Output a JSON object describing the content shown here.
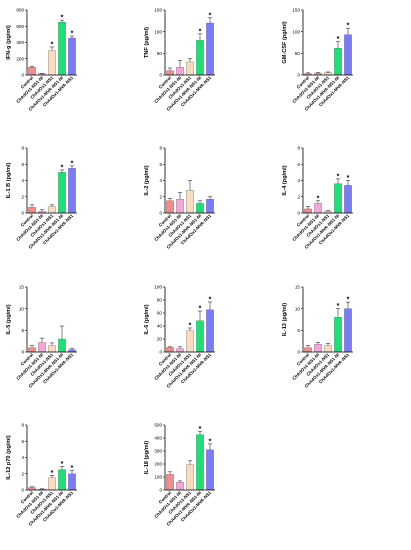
{
  "chart_data": [
    {
      "type": "bar",
      "title": "",
      "xlabel": "",
      "ylabel": "IFN-g (pg/ml)",
      "ylim": [
        0,
        800
      ],
      "yticks": [
        0,
        200,
        400,
        600,
        800
      ],
      "categories": [
        "Control",
        "ChAdOx1-NS1-NI",
        "ChAdOx1-NS1",
        "ChAdOx1-MVA-NS1-NI",
        "ChAdOx1-MVA-NS1"
      ],
      "values": [
        95,
        15,
        300,
        650,
        455
      ],
      "errors": [
        10,
        5,
        45,
        25,
        25
      ],
      "significant": [
        false,
        false,
        true,
        true,
        true
      ],
      "colors": [
        "#f08c8c",
        "#f4a6d7",
        "#f7dcc1",
        "#22dd77",
        "#7b7bf2"
      ]
    },
    {
      "type": "bar",
      "title": "",
      "xlabel": "",
      "ylabel": "TNF (pg/ml)",
      "ylim": [
        0,
        150
      ],
      "yticks": [
        0,
        50,
        100,
        150
      ],
      "categories": [
        "Control",
        "ChAdOx1-NS1-NI",
        "ChAdOx1-NS1",
        "ChAdOx1-MVA-NS1-NI",
        "ChAdOx1-MVA-NS1"
      ],
      "values": [
        10,
        18,
        30,
        80,
        120
      ],
      "errors": [
        6,
        16,
        8,
        15,
        12
      ],
      "significant": [
        false,
        false,
        false,
        true,
        true
      ],
      "colors": [
        "#f08c8c",
        "#f4a6d7",
        "#f7dcc1",
        "#22dd77",
        "#7b7bf2"
      ]
    },
    {
      "type": "bar",
      "title": "",
      "xlabel": "",
      "ylabel": "GM-CSF (pg/ml)",
      "ylim": [
        0,
        150
      ],
      "yticks": [
        0,
        50,
        100,
        150
      ],
      "categories": [
        "Control",
        "ChAdOx1-NS1-NI",
        "ChAdOx1-NS1",
        "ChAdOx1-MVA-NS1-NI",
        "ChAdOx1-MVA-NS1"
      ],
      "values": [
        3,
        4,
        5,
        62,
        93
      ],
      "errors": [
        2,
        2,
        2,
        15,
        15
      ],
      "significant": [
        false,
        false,
        false,
        true,
        true
      ],
      "colors": [
        "#f08c8c",
        "#f4a6d7",
        "#f7dcc1",
        "#22dd77",
        "#7b7bf2"
      ]
    },
    {
      "type": "bar",
      "title": "",
      "xlabel": "",
      "ylabel": "IL-1 B (pg/ml)",
      "ylim": [
        0,
        8
      ],
      "yticks": [
        0,
        2,
        4,
        6,
        8
      ],
      "categories": [
        "Control",
        "ChAdOx1-NS1-NI",
        "ChAdOx1-NS1",
        "ChAdOx1-MVA-NS1-NI",
        "ChAdOx1-MVA-NS1"
      ],
      "values": [
        0.7,
        0.2,
        0.8,
        5.0,
        5.5
      ],
      "errors": [
        0.3,
        0.2,
        0.2,
        0.3,
        0.3
      ],
      "significant": [
        false,
        false,
        false,
        true,
        true
      ],
      "colors": [
        "#f08c8c",
        "#f4a6d7",
        "#f7dcc1",
        "#22dd77",
        "#7b7bf2"
      ]
    },
    {
      "type": "bar",
      "title": "",
      "xlabel": "",
      "ylabel": "IL-2 (pg/ml)",
      "ylim": [
        0,
        8
      ],
      "yticks": [
        0,
        2,
        4,
        6,
        8
      ],
      "categories": [
        "Control",
        "ChAdOx1-NS1-NI",
        "ChAdOx1-NS1",
        "ChAdOx1-MVA-NS1-NI",
        "ChAdOx1-MVA-NS1"
      ],
      "values": [
        1.5,
        1.7,
        2.8,
        1.2,
        1.7
      ],
      "errors": [
        0.3,
        0.8,
        1.2,
        0.3,
        0.3
      ],
      "significant": [
        false,
        false,
        false,
        false,
        false
      ],
      "colors": [
        "#f08c8c",
        "#f4a6d7",
        "#f7dcc1",
        "#22dd77",
        "#7b7bf2"
      ]
    },
    {
      "type": "bar",
      "title": "",
      "xlabel": "",
      "ylabel": "IL-4 (pg/ml)",
      "ylim": [
        0,
        8
      ],
      "yticks": [
        0,
        2,
        4,
        6,
        8
      ],
      "categories": [
        "Control",
        "ChAdOx1-NS1-NI",
        "ChAdOx1-NS1",
        "ChAdOx1-MVA-NS1-NI",
        "ChAdOx1-MVA-NS1"
      ],
      "values": [
        0.5,
        1.2,
        0.2,
        3.6,
        3.4
      ],
      "errors": [
        0.3,
        0.3,
        0.1,
        0.6,
        0.6
      ],
      "significant": [
        false,
        true,
        false,
        true,
        true
      ],
      "colors": [
        "#f08c8c",
        "#f4a6d7",
        "#f7dcc1",
        "#22dd77",
        "#7b7bf2"
      ]
    },
    {
      "type": "bar",
      "title": "",
      "xlabel": "",
      "ylabel": "IL-5 (pg/ml)",
      "ylim": [
        0,
        15
      ],
      "yticks": [
        0,
        5,
        10,
        15
      ],
      "categories": [
        "Control",
        "ChAdOx1-NS1-NI",
        "ChAdOx1-NS1",
        "ChAdOx1-MVA-NS1-NI",
        "ChAdOx1-MVA-NS1"
      ],
      "values": [
        1.0,
        2.2,
        1.5,
        3.0,
        0.5
      ],
      "errors": [
        0.5,
        1.0,
        0.6,
        3.0,
        0.3
      ],
      "significant": [
        false,
        false,
        false,
        false,
        false
      ],
      "colors": [
        "#f08c8c",
        "#f4a6d7",
        "#f7dcc1",
        "#22dd77",
        "#7b7bf2"
      ]
    },
    {
      "type": "bar",
      "title": "",
      "xlabel": "",
      "ylabel": "IL-6 (pg/ml)",
      "ylim": [
        0,
        100
      ],
      "yticks": [
        0,
        20,
        40,
        60,
        80,
        100
      ],
      "categories": [
        "Control",
        "ChAdOx1-NS1-NI",
        "ChAdOx1-NS1",
        "ChAdOx1-MVA-NS1-NI",
        "ChAdOx1-MVA-NS1"
      ],
      "values": [
        7,
        5,
        33,
        48,
        65
      ],
      "errors": [
        1,
        3,
        4,
        15,
        12
      ],
      "significant": [
        false,
        false,
        true,
        true,
        true
      ],
      "colors": [
        "#f08c8c",
        "#f4a6d7",
        "#f7dcc1",
        "#22dd77",
        "#7b7bf2"
      ]
    },
    {
      "type": "bar",
      "title": "",
      "xlabel": "",
      "ylabel": "IL-13 (pg/ml)",
      "ylim": [
        0,
        15
      ],
      "yticks": [
        0,
        5,
        10,
        15
      ],
      "categories": [
        "Control",
        "ChAdOx1-NS1-NI",
        "ChAdOx1-NS1",
        "ChAdOx1-MVA-NS1-NI",
        "ChAdOx1-MVA-NS1"
      ],
      "values": [
        1.0,
        1.8,
        1.5,
        8.0,
        10.0
      ],
      "errors": [
        0.5,
        0.4,
        0.5,
        2.0,
        1.5
      ],
      "significant": [
        false,
        false,
        false,
        true,
        true
      ],
      "colors": [
        "#f08c8c",
        "#f4a6d7",
        "#f7dcc1",
        "#22dd77",
        "#7b7bf2"
      ]
    },
    {
      "type": "bar",
      "title": "",
      "xlabel": "",
      "ylabel": "IL-12 p70 (pg/ml)",
      "ylim": [
        0,
        8
      ],
      "yticks": [
        0,
        2,
        4,
        6,
        8
      ],
      "categories": [
        "Control",
        "ChAdOx1-NS1-NI",
        "ChAdOx1-NS1",
        "ChAdOx1-MVA-NS1-NI",
        "ChAdOx1-MVA-NS1"
      ],
      "values": [
        0.3,
        0.1,
        1.5,
        2.5,
        2.0
      ],
      "errors": [
        0.1,
        0.05,
        0.3,
        0.4,
        0.4
      ],
      "significant": [
        false,
        false,
        true,
        true,
        true
      ],
      "colors": [
        "#f08c8c",
        "#f4a6d7",
        "#f7dcc1",
        "#22dd77",
        "#7b7bf2"
      ]
    },
    {
      "type": "bar",
      "title": "",
      "xlabel": "",
      "ylabel": "IL-18 (pg/ml)",
      "ylim": [
        0,
        500
      ],
      "yticks": [
        0,
        100,
        200,
        300,
        400,
        500
      ],
      "categories": [
        "Control",
        "ChAdOx1-NS1-NI",
        "ChAdOx1-NS1",
        "ChAdOx1-MVA-NS1-NI",
        "ChAdOx1-MVA-NS1"
      ],
      "values": [
        120,
        60,
        195,
        425,
        310
      ],
      "errors": [
        20,
        10,
        30,
        25,
        45
      ],
      "significant": [
        false,
        false,
        false,
        true,
        true
      ],
      "colors": [
        "#f08c8c",
        "#f4a6d7",
        "#f7dcc1",
        "#22dd77",
        "#7b7bf2"
      ]
    }
  ]
}
